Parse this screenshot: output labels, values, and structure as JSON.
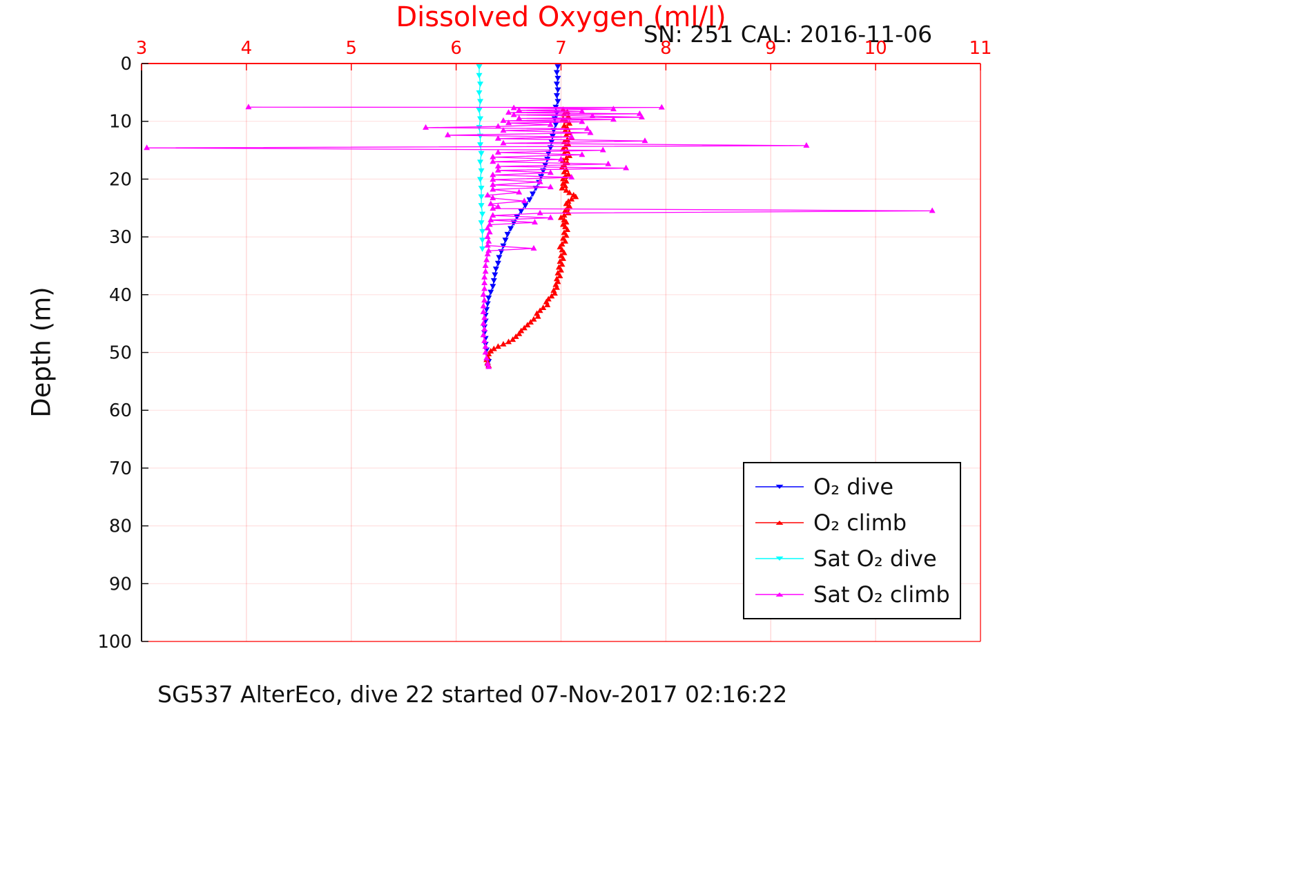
{
  "chart_data": {
    "type": "line",
    "title": "Dissolved Oxygen (ml/l)",
    "title_color": "#ff0000",
    "annotation": "SN: 251  CAL: 2016-11-06",
    "caption": "SG537 AlterEco, dive 22 started 07-Nov-2017 02:16:22",
    "x_axis": {
      "side": "top",
      "color": "#ff0000",
      "lim": [
        3,
        11
      ],
      "ticks": [
        3,
        4,
        5,
        6,
        7,
        8,
        9,
        10,
        11
      ]
    },
    "y_axis": {
      "label": "Depth (m)",
      "color": "#111111",
      "lim": [
        0,
        100
      ],
      "ticks": [
        0,
        10,
        20,
        30,
        40,
        50,
        60,
        70,
        80,
        90,
        100
      ],
      "direction": "down"
    },
    "grid": true,
    "grid_color_v": "rgba(255,0,0,0.16)",
    "grid_color_h": "rgba(255,0,0,0.12)",
    "legend_position": "lower right",
    "series": [
      {
        "name": "o2-dive",
        "label": "O₂ dive",
        "color": "#0000ff",
        "marker": "down",
        "points": [
          [
            6.97,
            0.5
          ],
          [
            6.96,
            1.5
          ],
          [
            6.97,
            2.5
          ],
          [
            6.96,
            3.5
          ],
          [
            6.97,
            4.5
          ],
          [
            6.96,
            5.5
          ],
          [
            6.97,
            6.5
          ],
          [
            6.95,
            7.5
          ],
          [
            6.96,
            8.5
          ],
          [
            6.94,
            9.5
          ],
          [
            6.95,
            10.5
          ],
          [
            6.93,
            11.5
          ],
          [
            6.92,
            12.5
          ],
          [
            6.91,
            13.5
          ],
          [
            6.9,
            14.5
          ],
          [
            6.88,
            15.5
          ],
          [
            6.87,
            16.5
          ],
          [
            6.85,
            17.5
          ],
          [
            6.83,
            18.5
          ],
          [
            6.81,
            19.5
          ],
          [
            6.79,
            20.5
          ],
          [
            6.76,
            21.5
          ],
          [
            6.73,
            22.5
          ],
          [
            6.7,
            23.5
          ],
          [
            6.66,
            24.5
          ],
          [
            6.62,
            25.5
          ],
          [
            6.58,
            26.5
          ],
          [
            6.55,
            27.5
          ],
          [
            6.52,
            28.5
          ],
          [
            6.49,
            29.5
          ],
          [
            6.47,
            30.5
          ],
          [
            6.45,
            31.5
          ],
          [
            6.43,
            32.5
          ],
          [
            6.41,
            33.5
          ],
          [
            6.4,
            34.5
          ],
          [
            6.38,
            35.5
          ],
          [
            6.37,
            36.5
          ],
          [
            6.36,
            37.5
          ],
          [
            6.35,
            38.5
          ],
          [
            6.33,
            39.5
          ],
          [
            6.31,
            40.5
          ],
          [
            6.3,
            41.5
          ],
          [
            6.29,
            42.5
          ],
          [
            6.28,
            43.5
          ],
          [
            6.28,
            44.5
          ],
          [
            6.27,
            45.5
          ],
          [
            6.27,
            46.5
          ],
          [
            6.28,
            47.5
          ],
          [
            6.28,
            48.5
          ],
          [
            6.29,
            49.5
          ],
          [
            6.3,
            50.5
          ],
          [
            6.31,
            51.5
          ],
          [
            6.3,
            52.3
          ]
        ]
      },
      {
        "name": "o2-climb",
        "label": "O₂ climb",
        "color": "#ff0000",
        "marker": "up",
        "points": [
          [
            7.02,
            8.0
          ],
          [
            7.06,
            8.4
          ],
          [
            7.03,
            8.8
          ],
          [
            7.07,
            9.2
          ],
          [
            7.02,
            9.6
          ],
          [
            7.05,
            10.0
          ],
          [
            7.08,
            10.4
          ],
          [
            7.03,
            10.8
          ],
          [
            7.06,
            11.2
          ],
          [
            7.04,
            11.6
          ],
          [
            7.08,
            12.0
          ],
          [
            7.05,
            12.4
          ],
          [
            7.1,
            12.8
          ],
          [
            7.06,
            13.2
          ],
          [
            7.03,
            13.6
          ],
          [
            7.07,
            14.0
          ],
          [
            7.04,
            14.4
          ],
          [
            7.02,
            14.8
          ],
          [
            7.06,
            15.2
          ],
          [
            7.03,
            15.6
          ],
          [
            7.08,
            16.0
          ],
          [
            7.05,
            16.4
          ],
          [
            7.02,
            16.8
          ],
          [
            7.06,
            17.2
          ],
          [
            7.03,
            17.6
          ],
          [
            7.01,
            18.0
          ],
          [
            7.05,
            18.4
          ],
          [
            7.03,
            18.8
          ],
          [
            7.07,
            19.2
          ],
          [
            7.04,
            19.6
          ],
          [
            7.02,
            20.0
          ],
          [
            7.05,
            20.4
          ],
          [
            7.02,
            20.8
          ],
          [
            7.04,
            21.2
          ],
          [
            7.01,
            21.6
          ],
          [
            7.05,
            22.0
          ],
          [
            7.08,
            22.4
          ],
          [
            7.12,
            22.8
          ],
          [
            7.14,
            23.1
          ],
          [
            7.1,
            23.5
          ],
          [
            7.07,
            23.9
          ],
          [
            7.05,
            24.3
          ],
          [
            7.08,
            24.7
          ],
          [
            7.06,
            25.1
          ],
          [
            7.04,
            25.5
          ],
          [
            7.07,
            25.9
          ],
          [
            7.03,
            26.3
          ],
          [
            7.0,
            26.7
          ],
          [
            7.03,
            27.1
          ],
          [
            7.05,
            27.5
          ],
          [
            7.02,
            27.9
          ],
          [
            7.04,
            28.3
          ],
          [
            7.06,
            28.8
          ],
          [
            7.03,
            29.3
          ],
          [
            7.05,
            29.8
          ],
          [
            7.02,
            30.3
          ],
          [
            7.04,
            30.8
          ],
          [
            7.01,
            31.3
          ],
          [
            6.99,
            31.8
          ],
          [
            7.01,
            32.3
          ],
          [
            7.03,
            32.8
          ],
          [
            7.0,
            33.3
          ],
          [
            7.02,
            33.8
          ],
          [
            6.99,
            34.3
          ],
          [
            7.01,
            34.8
          ],
          [
            6.98,
            35.3
          ],
          [
            7.0,
            35.8
          ],
          [
            6.97,
            36.3
          ],
          [
            6.99,
            36.8
          ],
          [
            6.96,
            37.3
          ],
          [
            6.97,
            37.8
          ],
          [
            6.95,
            38.3
          ],
          [
            6.96,
            38.8
          ],
          [
            6.93,
            39.3
          ],
          [
            6.94,
            39.8
          ],
          [
            6.91,
            40.3
          ],
          [
            6.88,
            40.8
          ],
          [
            6.86,
            41.3
          ],
          [
            6.87,
            41.8
          ],
          [
            6.83,
            42.3
          ],
          [
            6.8,
            42.8
          ],
          [
            6.77,
            43.3
          ],
          [
            6.78,
            43.8
          ],
          [
            6.74,
            44.3
          ],
          [
            6.71,
            44.8
          ],
          [
            6.68,
            45.3
          ],
          [
            6.65,
            45.8
          ],
          [
            6.62,
            46.3
          ],
          [
            6.6,
            46.8
          ],
          [
            6.57,
            47.3
          ],
          [
            6.54,
            47.8
          ],
          [
            6.5,
            48.2
          ],
          [
            6.45,
            48.6
          ],
          [
            6.4,
            49.0
          ],
          [
            6.36,
            49.4
          ],
          [
            6.33,
            49.8
          ],
          [
            6.31,
            50.3
          ],
          [
            6.3,
            50.8
          ],
          [
            6.29,
            51.3
          ],
          [
            6.3,
            51.8
          ],
          [
            6.31,
            52.3
          ]
        ]
      },
      {
        "name": "sat-o2-dive",
        "label": "Sat O₂ dive",
        "color": "#00ffff",
        "marker": "down",
        "points": [
          [
            6.22,
            0.5
          ],
          [
            6.22,
            2.0
          ],
          [
            6.23,
            3.5
          ],
          [
            6.22,
            5.0
          ],
          [
            6.23,
            6.5
          ],
          [
            6.22,
            8.0
          ],
          [
            6.23,
            9.5
          ],
          [
            6.22,
            11.0
          ],
          [
            6.23,
            12.5
          ],
          [
            6.23,
            14.0
          ],
          [
            6.24,
            15.5
          ],
          [
            6.23,
            17.0
          ],
          [
            6.24,
            18.5
          ],
          [
            6.23,
            20.0
          ],
          [
            6.24,
            21.5
          ],
          [
            6.24,
            23.0
          ],
          [
            6.24,
            24.5
          ],
          [
            6.25,
            26.0
          ],
          [
            6.24,
            27.5
          ],
          [
            6.25,
            29.0
          ],
          [
            6.25,
            30.5
          ],
          [
            6.25,
            32.0
          ]
        ]
      },
      {
        "name": "sat-o2-climb",
        "label": "Sat O₂ climb",
        "color": "#ff00ff",
        "marker": "up",
        "points": [
          [
            4.02,
            7.55
          ],
          [
            7.96,
            7.6
          ],
          [
            6.55,
            7.7
          ],
          [
            7.5,
            7.9
          ],
          [
            6.6,
            8.1
          ],
          [
            7.2,
            8.3
          ],
          [
            6.5,
            8.5
          ],
          [
            7.75,
            8.7
          ],
          [
            6.55,
            8.9
          ],
          [
            7.3,
            9.1
          ],
          [
            7.77,
            9.3
          ],
          [
            6.6,
            9.5
          ],
          [
            7.5,
            9.7
          ],
          [
            6.45,
            9.9
          ],
          [
            7.2,
            10.1
          ],
          [
            6.5,
            10.3
          ],
          [
            6.9,
            10.6
          ],
          [
            6.4,
            10.9
          ],
          [
            5.71,
            11.1
          ],
          [
            7.25,
            11.3
          ],
          [
            6.45,
            11.6
          ],
          [
            7.28,
            12.0
          ],
          [
            5.92,
            12.4
          ],
          [
            7.1,
            12.7
          ],
          [
            6.4,
            13.0
          ],
          [
            7.8,
            13.4
          ],
          [
            6.45,
            13.8
          ],
          [
            9.34,
            14.2
          ],
          [
            3.05,
            14.6
          ],
          [
            7.4,
            15.0
          ],
          [
            6.4,
            15.4
          ],
          [
            7.2,
            15.8
          ],
          [
            6.35,
            16.2
          ],
          [
            7.0,
            16.6
          ],
          [
            6.35,
            17.0
          ],
          [
            7.45,
            17.4
          ],
          [
            6.4,
            17.8
          ],
          [
            7.62,
            18.1
          ],
          [
            6.4,
            18.5
          ],
          [
            6.9,
            18.9
          ],
          [
            6.35,
            19.3
          ],
          [
            7.1,
            19.7
          ],
          [
            6.35,
            20.1
          ],
          [
            6.8,
            20.5
          ],
          [
            6.35,
            21.0
          ],
          [
            6.9,
            21.4
          ],
          [
            6.35,
            21.8
          ],
          [
            6.6,
            22.3
          ],
          [
            6.3,
            22.8
          ],
          [
            6.35,
            23.3
          ],
          [
            6.65,
            23.8
          ],
          [
            6.33,
            24.3
          ],
          [
            6.4,
            24.8
          ],
          [
            6.35,
            25.1
          ],
          [
            10.54,
            25.5
          ],
          [
            6.8,
            25.9
          ],
          [
            6.35,
            26.3
          ],
          [
            6.9,
            26.7
          ],
          [
            6.33,
            27.1
          ],
          [
            6.75,
            27.5
          ],
          [
            6.32,
            27.9
          ],
          [
            6.3,
            28.5
          ],
          [
            6.32,
            29.2
          ],
          [
            6.3,
            30.0
          ],
          [
            6.31,
            30.8
          ],
          [
            6.3,
            31.5
          ],
          [
            6.74,
            32.0
          ],
          [
            6.31,
            32.4
          ],
          [
            6.3,
            33.0
          ],
          [
            6.29,
            34.0
          ],
          [
            6.28,
            35.0
          ],
          [
            6.28,
            36.0
          ],
          [
            6.27,
            37.0
          ],
          [
            6.27,
            38.0
          ],
          [
            6.27,
            39.0
          ],
          [
            6.26,
            40.0
          ],
          [
            6.27,
            41.0
          ],
          [
            6.26,
            42.0
          ],
          [
            6.26,
            43.0
          ],
          [
            6.27,
            44.0
          ],
          [
            6.26,
            45.0
          ],
          [
            6.27,
            46.0
          ],
          [
            6.26,
            47.0
          ],
          [
            6.27,
            48.0
          ],
          [
            6.28,
            49.0
          ],
          [
            6.28,
            50.0
          ],
          [
            6.29,
            51.0
          ],
          [
            6.3,
            52.0
          ],
          [
            6.31,
            52.5
          ]
        ]
      }
    ]
  }
}
